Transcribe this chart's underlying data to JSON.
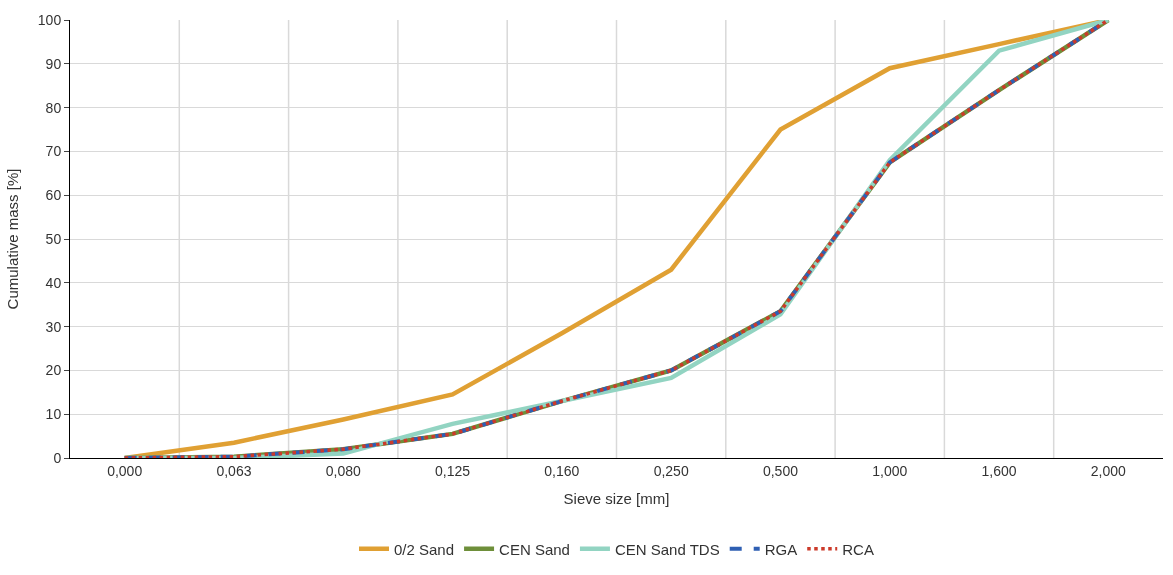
{
  "chart_data": {
    "type": "line",
    "xlabel": "Sieve size [mm]",
    "ylabel": "Cumulative mass [%]",
    "categories": [
      "0,000",
      "0,063",
      "0,080",
      "0,125",
      "0,160",
      "0,250",
      "0,500",
      "1,000",
      "1,600",
      "2,000"
    ],
    "ylim": [
      0,
      100
    ],
    "yticks": [
      0,
      10,
      20,
      30,
      40,
      50,
      60,
      70,
      80,
      90,
      100
    ],
    "grid": true,
    "legend": "bottom",
    "marker": "none",
    "series": [
      {
        "name": "0/2 Sand",
        "color": "#e0a033",
        "line_style": "solid",
        "values": [
          0,
          3.5,
          8.8,
          14.5,
          28.5,
          43,
          75,
          89,
          94.5,
          100
        ]
      },
      {
        "name": "CEN Sand",
        "color": "#6e8f3a",
        "line_style": "solid",
        "values": [
          0,
          0.3,
          2,
          5.5,
          13,
          20,
          33.5,
          67.5,
          84,
          100
        ]
      },
      {
        "name": "CEN Sand TDS",
        "color": "#92d4c2",
        "line_style": "solid",
        "values": [
          0,
          0,
          1,
          7.8,
          13,
          18.3,
          32.8,
          68,
          93,
          100
        ]
      },
      {
        "name": "RGA",
        "color": "#2f5fb3",
        "line_style": "dashed",
        "values": [
          0,
          0.3,
          2,
          5.5,
          13,
          20,
          33.5,
          67.5,
          84,
          100
        ]
      },
      {
        "name": "RCA",
        "color": "#cc3a2a",
        "line_style": "dotted",
        "values": [
          0,
          0.3,
          2,
          5.5,
          13,
          20,
          33.5,
          67.5,
          84,
          100
        ]
      }
    ]
  }
}
